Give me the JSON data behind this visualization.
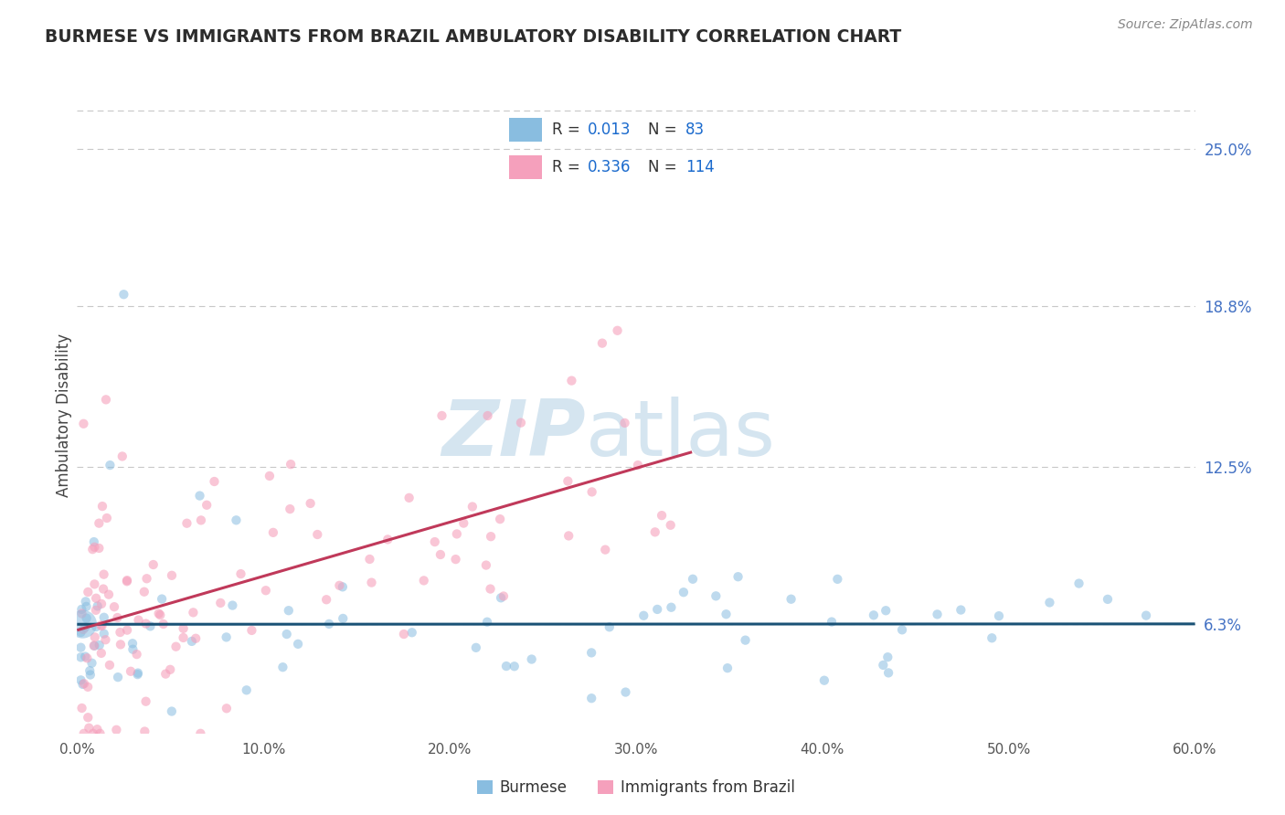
{
  "title": "BURMESE VS IMMIGRANTS FROM BRAZIL AMBULATORY DISABILITY CORRELATION CHART",
  "source": "Source: ZipAtlas.com",
  "ylabel": "Ambulatory Disability",
  "xmin": 0.0,
  "xmax": 0.6,
  "ymin": 0.02,
  "ymax": 0.27,
  "yticks": [
    0.063,
    0.125,
    0.188,
    0.25
  ],
  "ytick_labels": [
    "6.3%",
    "12.5%",
    "18.8%",
    "25.0%"
  ],
  "xticks": [
    0.0,
    0.1,
    0.2,
    0.3,
    0.4,
    0.5,
    0.6
  ],
  "xtick_labels": [
    "0.0%",
    "10.0%",
    "20.0%",
    "30.0%",
    "40.0%",
    "50.0%",
    "60.0%"
  ],
  "legend_r1": "R = 0.013",
  "legend_n1": "N =  83",
  "legend_r2": "R = 0.336",
  "legend_n2": "N = 114",
  "color_blue": "#89bde0",
  "color_pink": "#f5a0bc",
  "trend_blue": "#1a5276",
  "trend_pink": "#c0395a",
  "watermark_color": "#d5e5f0",
  "background": "#ffffff",
  "grid_color": "#c8c8c8",
  "title_color": "#2c2c2c",
  "source_color": "#888888",
  "legend_r_color": "#1a6acd",
  "tick_color_y": "#4472c4",
  "tick_color_x": "#555555",
  "ylabel_color": "#444444"
}
